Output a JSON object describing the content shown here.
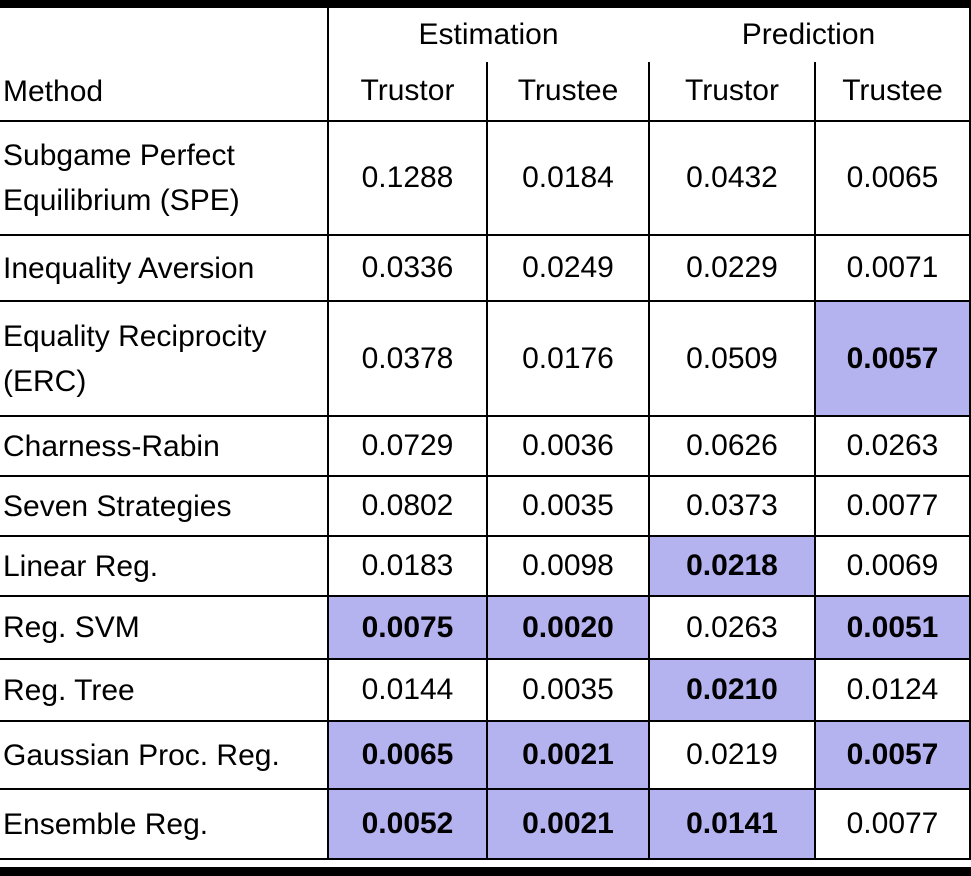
{
  "table": {
    "highlight_color": "#b5b3ef",
    "header": {
      "groups": [
        "Estimation",
        "Prediction"
      ],
      "method": "Method",
      "sub": [
        "Trustor",
        "Trustee",
        "Trustor",
        "Trustee"
      ]
    },
    "rows": [
      {
        "method": "Subgame Perfect Equilibrium (SPE)",
        "values": [
          "0.1288",
          "0.0184",
          "0.0432",
          "0.0065"
        ],
        "highlight": [
          false,
          false,
          false,
          false
        ]
      },
      {
        "method": "Inequality Aversion",
        "values": [
          "0.0336",
          "0.0249",
          "0.0229",
          "0.0071"
        ],
        "highlight": [
          false,
          false,
          false,
          false
        ]
      },
      {
        "method": "Equality Reciprocity (ERC)",
        "values": [
          "0.0378",
          "0.0176",
          "0.0509",
          "0.0057"
        ],
        "highlight": [
          false,
          false,
          false,
          true
        ]
      },
      {
        "method": "Charness-Rabin",
        "values": [
          "0.0729",
          "0.0036",
          "0.0626",
          "0.0263"
        ],
        "highlight": [
          false,
          false,
          false,
          false
        ]
      },
      {
        "method": "Seven Strategies",
        "values": [
          "0.0802",
          "0.0035",
          "0.0373",
          "0.0077"
        ],
        "highlight": [
          false,
          false,
          false,
          false
        ]
      },
      {
        "method": "Linear Reg.",
        "values": [
          "0.0183",
          "0.0098",
          "0.0218",
          "0.0069"
        ],
        "highlight": [
          false,
          false,
          true,
          false
        ]
      },
      {
        "method": "Reg. SVM",
        "values": [
          "0.0075",
          "0.0020",
          "0.0263",
          "0.0051"
        ],
        "highlight": [
          true,
          true,
          false,
          true
        ]
      },
      {
        "method": "Reg. Tree",
        "values": [
          "0.0144",
          "0.0035",
          "0.0210",
          "0.0124"
        ],
        "highlight": [
          false,
          false,
          true,
          false
        ]
      },
      {
        "method": "Gaussian Proc. Reg.",
        "values": [
          "0.0065",
          "0.0021",
          "0.0219",
          "0.0057"
        ],
        "highlight": [
          true,
          true,
          false,
          true
        ]
      },
      {
        "method": "Ensemble Reg.",
        "values": [
          "0.0052",
          "0.0021",
          "0.0141",
          "0.0077"
        ],
        "highlight": [
          true,
          true,
          true,
          false
        ]
      }
    ]
  },
  "chart_data": {
    "type": "table",
    "title": "",
    "column_groups": [
      "Estimation",
      "Prediction"
    ],
    "columns": [
      "Method",
      "Estimation Trustor",
      "Estimation Trustee",
      "Prediction Trustor",
      "Prediction Trustee"
    ],
    "rows": [
      [
        "Subgame Perfect Equilibrium (SPE)",
        0.1288,
        0.0184,
        0.0432,
        0.0065
      ],
      [
        "Inequality Aversion",
        0.0336,
        0.0249,
        0.0229,
        0.0071
      ],
      [
        "Equality Reciprocity (ERC)",
        0.0378,
        0.0176,
        0.0509,
        0.0057
      ],
      [
        "Charness-Rabin",
        0.0729,
        0.0036,
        0.0626,
        0.0263
      ],
      [
        "Seven Strategies",
        0.0802,
        0.0035,
        0.0373,
        0.0077
      ],
      [
        "Linear Reg.",
        0.0183,
        0.0098,
        0.0218,
        0.0069
      ],
      [
        "Reg. SVM",
        0.0075,
        0.002,
        0.0263,
        0.0051
      ],
      [
        "Reg. Tree",
        0.0144,
        0.0035,
        0.021,
        0.0124
      ],
      [
        "Gaussian Proc. Reg.",
        0.0065,
        0.0021,
        0.0219,
        0.0057
      ],
      [
        "Ensemble Reg.",
        0.0052,
        0.0021,
        0.0141,
        0.0077
      ]
    ],
    "highlighted_best_cells": [
      [
        "Equality Reciprocity (ERC)",
        "Prediction Trustee"
      ],
      [
        "Linear Reg.",
        "Prediction Trustor"
      ],
      [
        "Reg. SVM",
        "Estimation Trustor"
      ],
      [
        "Reg. SVM",
        "Estimation Trustee"
      ],
      [
        "Reg. SVM",
        "Prediction Trustee"
      ],
      [
        "Reg. Tree",
        "Prediction Trustor"
      ],
      [
        "Gaussian Proc. Reg.",
        "Estimation Trustor"
      ],
      [
        "Gaussian Proc. Reg.",
        "Estimation Trustee"
      ],
      [
        "Gaussian Proc. Reg.",
        "Prediction Trustee"
      ],
      [
        "Ensemble Reg.",
        "Estimation Trustor"
      ],
      [
        "Ensemble Reg.",
        "Estimation Trustee"
      ],
      [
        "Ensemble Reg.",
        "Prediction Trustor"
      ]
    ]
  }
}
